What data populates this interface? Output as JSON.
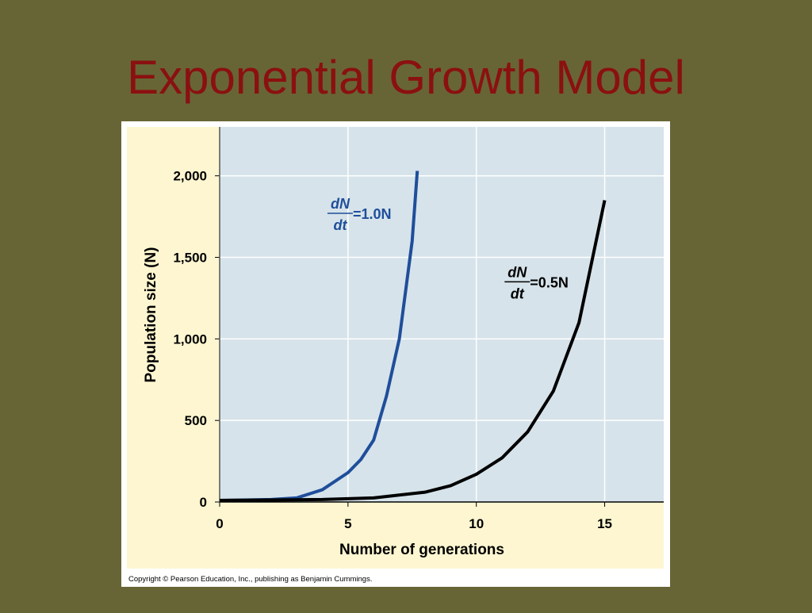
{
  "chart_data": {
    "type": "line",
    "title": "Exponential Growth Model",
    "xlabel": "Number of generations",
    "ylabel": "Population size (N)",
    "copyright": "Copyright © Pearson Education, Inc., publishing as Benjamin Cummings.",
    "xlim": [
      0,
      17.3
    ],
    "ylim": [
      0,
      2300
    ],
    "xticks": [
      0,
      5,
      10,
      15
    ],
    "yticks": [
      0,
      500,
      {
        "value": 1000,
        "label": "1,000"
      },
      {
        "value": 1500,
        "label": "1,500"
      },
      {
        "value": 2000,
        "label": "2,000"
      }
    ],
    "grid": true,
    "series": [
      {
        "color": "#1f4e9a",
        "x": [
          0,
          1,
          2,
          3,
          4,
          5,
          5.5,
          6,
          6.5,
          7,
          7.5,
          7.7
        ],
        "values": [
          10,
          12,
          15,
          25,
          75,
          180,
          260,
          380,
          650,
          1000,
          1600,
          2030
        ]
      },
      {
        "color": "#000000",
        "x": [
          0,
          2,
          4,
          6,
          8,
          9,
          10,
          11,
          12,
          13,
          14,
          15
        ],
        "values": [
          10,
          12,
          15,
          25,
          60,
          100,
          170,
          270,
          430,
          680,
          1100,
          1850
        ]
      }
    ],
    "annotations": [
      {
        "numerator": "dN",
        "denominator": "dt",
        "rhs": "=1.0N",
        "color": "#1f4e9a",
        "x": 4.2,
        "y": 1770
      },
      {
        "numerator": "dN",
        "denominator": "dt",
        "rhs": "=0.5N",
        "color": "#000000",
        "x": 11.1,
        "y": 1350
      }
    ]
  }
}
